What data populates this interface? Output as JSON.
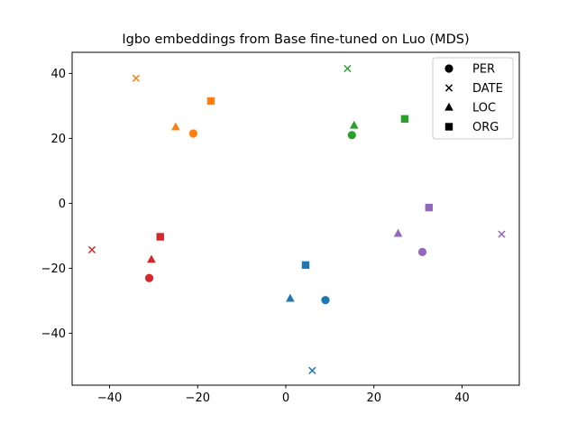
{
  "chart_data": {
    "type": "scatter",
    "title": "Igbo embeddings from Base fine-tuned on Luo (MDS)",
    "xlabel": "",
    "ylabel": "",
    "xlim": [
      -48.5,
      53
    ],
    "ylim": [
      -56,
      46.5
    ],
    "xticks": [
      -40,
      -20,
      0,
      20,
      40
    ],
    "yticks": [
      -40,
      -20,
      0,
      20,
      40
    ],
    "xtick_labels": [
      "−40",
      "−20",
      "0",
      "20",
      "40"
    ],
    "ytick_labels": [
      "−40",
      "−20",
      "0",
      "20",
      "40"
    ],
    "grid": false,
    "legend": {
      "placement": "top-right",
      "entries": [
        {
          "label": "PER",
          "marker": "circle"
        },
        {
          "label": "DATE",
          "marker": "x"
        },
        {
          "label": "LOC",
          "marker": "triangle"
        },
        {
          "label": "ORG",
          "marker": "square"
        }
      ]
    },
    "series": [
      {
        "color": "#1f77b4",
        "points": [
          {
            "x": 9.0,
            "y": -29.8,
            "marker": "circle"
          },
          {
            "x": 6.0,
            "y": -51.5,
            "marker": "x"
          },
          {
            "x": 1.0,
            "y": -29.3,
            "marker": "triangle"
          },
          {
            "x": 4.5,
            "y": -19.0,
            "marker": "square"
          }
        ]
      },
      {
        "color": "#ff7f0e",
        "points": [
          {
            "x": -21.0,
            "y": 21.5,
            "marker": "circle"
          },
          {
            "x": -34.0,
            "y": 38.5,
            "marker": "x"
          },
          {
            "x": -25.0,
            "y": 23.5,
            "marker": "triangle"
          },
          {
            "x": -17.0,
            "y": 31.5,
            "marker": "square"
          }
        ]
      },
      {
        "color": "#2ca02c",
        "points": [
          {
            "x": 15.0,
            "y": 21.0,
            "marker": "circle"
          },
          {
            "x": 14.0,
            "y": 41.5,
            "marker": "x"
          },
          {
            "x": 15.5,
            "y": 24.0,
            "marker": "triangle"
          },
          {
            "x": 27.0,
            "y": 26.0,
            "marker": "square"
          }
        ]
      },
      {
        "color": "#d62728",
        "points": [
          {
            "x": -31.0,
            "y": -23.0,
            "marker": "circle"
          },
          {
            "x": -44.0,
            "y": -14.3,
            "marker": "x"
          },
          {
            "x": -30.5,
            "y": -17.3,
            "marker": "triangle"
          },
          {
            "x": -28.5,
            "y": -10.3,
            "marker": "square"
          }
        ]
      },
      {
        "color": "#9467bd",
        "points": [
          {
            "x": 31.0,
            "y": -15.0,
            "marker": "circle"
          },
          {
            "x": 49.0,
            "y": -9.5,
            "marker": "x"
          },
          {
            "x": 25.5,
            "y": -9.3,
            "marker": "triangle"
          },
          {
            "x": 32.5,
            "y": -1.3,
            "marker": "square"
          }
        ]
      }
    ]
  }
}
